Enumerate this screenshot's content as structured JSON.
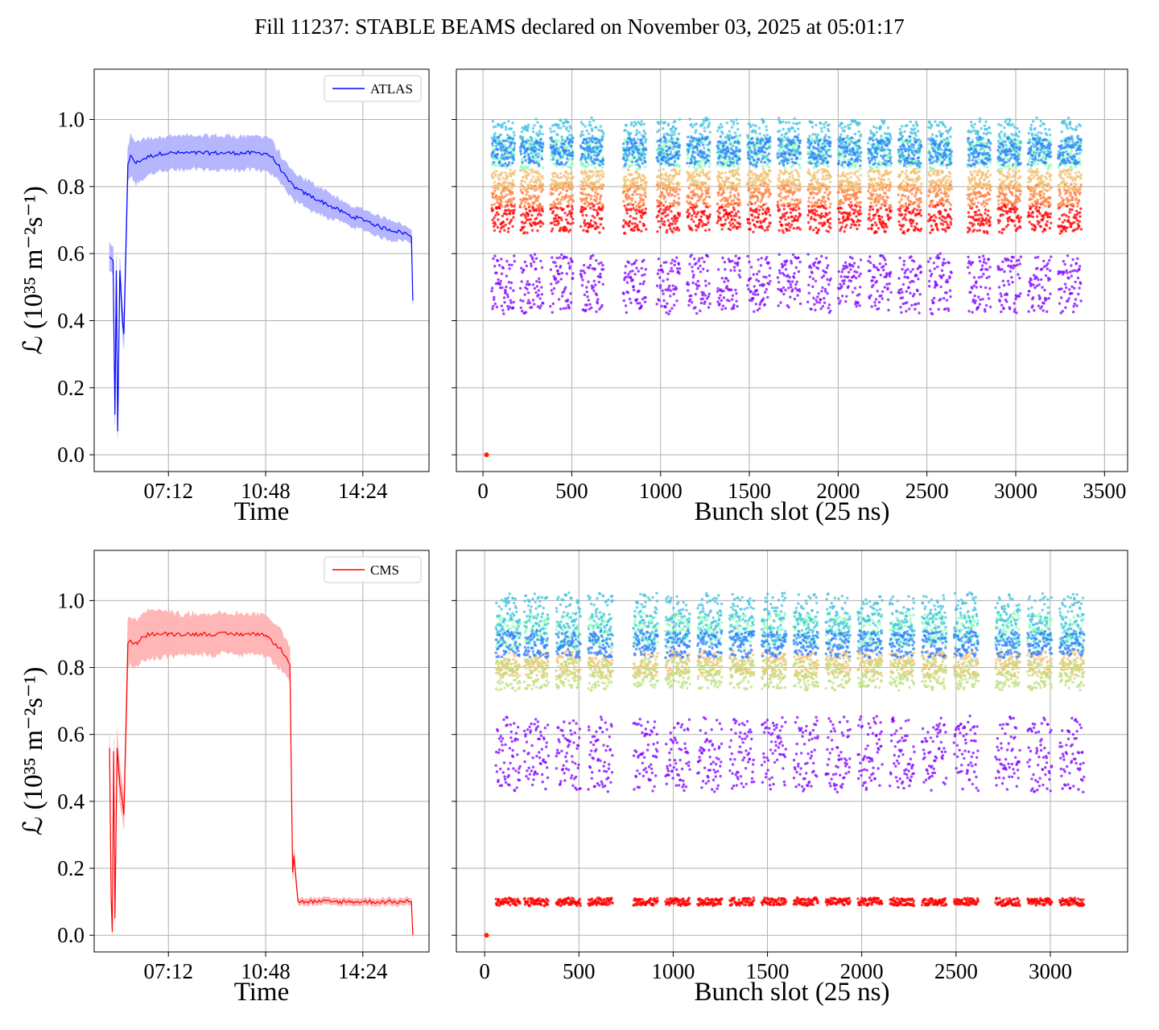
{
  "title": "Fill 11237: STABLE BEAMS declared on November 03, 2025 at 05:01:17",
  "chart_data": [
    {
      "panel": "top-left",
      "type": "line",
      "xlabel": "Time",
      "ylabel": "ℒ (10³⁵ m⁻²s⁻¹)",
      "x_ticks": [
        "07:12",
        "10:48",
        "14:24"
      ],
      "y_ticks": [
        "0.0",
        "0.2",
        "0.4",
        "0.6",
        "0.8",
        "1.0"
      ],
      "ylim": [
        -0.05,
        1.15
      ],
      "xlim_hours": [
        4.45,
        16.85
      ],
      "grid": true,
      "legend_position": "top-right",
      "color": "#0000ff",
      "band_color": "#b3b3ff",
      "series": [
        {
          "name": "ATLAS",
          "x_hours": [
            5.02,
            5.15,
            5.22,
            5.27,
            5.32,
            5.4,
            5.5,
            5.55,
            5.7,
            5.8,
            6.0,
            6.2,
            6.5,
            7.0,
            7.5,
            8.0,
            8.5,
            9.0,
            9.5,
            10.0,
            10.5,
            10.8,
            11.0,
            11.3,
            11.6,
            12.0,
            12.5,
            13.0,
            13.5,
            14.0,
            14.5,
            15.0,
            15.5,
            16.0,
            16.2,
            16.25
          ],
          "y": [
            0.59,
            0.58,
            0.12,
            0.55,
            0.07,
            0.55,
            0.4,
            0.36,
            0.87,
            0.89,
            0.87,
            0.88,
            0.89,
            0.9,
            0.9,
            0.9,
            0.9,
            0.9,
            0.9,
            0.9,
            0.9,
            0.9,
            0.89,
            0.86,
            0.82,
            0.79,
            0.77,
            0.75,
            0.73,
            0.71,
            0.7,
            0.68,
            0.67,
            0.66,
            0.65,
            0.46
          ],
          "band_half_width": [
            0.04,
            0.04,
            0.03,
            0.04,
            0.02,
            0.04,
            0.04,
            0.04,
            0.05,
            0.06,
            0.06,
            0.06,
            0.05,
            0.05,
            0.05,
            0.05,
            0.05,
            0.05,
            0.05,
            0.05,
            0.05,
            0.05,
            0.05,
            0.04,
            0.04,
            0.04,
            0.04,
            0.04,
            0.03,
            0.03,
            0.03,
            0.03,
            0.03,
            0.02,
            0.02,
            0.01
          ]
        }
      ]
    },
    {
      "panel": "top-right",
      "type": "scatter",
      "xlabel": "Bunch slot (25 ns)",
      "x_ticks": [
        0,
        500,
        1000,
        1500,
        2000,
        2500,
        3000,
        3500
      ],
      "xlim": [
        -150,
        3630
      ],
      "ylim": [
        -0.05,
        1.15
      ],
      "grid": true,
      "colormap": "rainbow",
      "trains_start": [
        50,
        210,
        380,
        550,
        790,
        980,
        1150,
        1320,
        1490,
        1660,
        1830,
        2000,
        2170,
        2340,
        2510,
        2730,
        2900,
        3070,
        3240
      ],
      "bunches_per_train": 60,
      "train_slot_span": 130,
      "levels": [
        {
          "color": "#8000ff",
          "y_min": 0.4,
          "y_max": 0.62
        },
        {
          "color": "#ff0000",
          "y_min": 0.65,
          "y_max": 0.76
        },
        {
          "color": "#ff8040",
          "y_min": 0.73,
          "y_max": 0.82
        },
        {
          "color": "#f0c070",
          "y_min": 0.78,
          "y_max": 0.86
        },
        {
          "color": "#80ffb4",
          "y_min": 0.84,
          "y_max": 0.96
        },
        {
          "color": "#40c0e0",
          "y_min": 0.86,
          "y_max": 1.02
        },
        {
          "color": "#3080ff",
          "y_min": 0.85,
          "y_max": 0.96
        }
      ],
      "lone_point": {
        "x": 20,
        "y": 0.0,
        "color": "#ff2000"
      }
    },
    {
      "panel": "bottom-left",
      "type": "line",
      "xlabel": "Time",
      "ylabel": "ℒ (10³⁵ m⁻²s⁻¹)",
      "x_ticks": [
        "07:12",
        "10:48",
        "14:24"
      ],
      "y_ticks": [
        "0.0",
        "0.2",
        "0.4",
        "0.6",
        "0.8",
        "1.0"
      ],
      "ylim": [
        -0.05,
        1.15
      ],
      "xlim_hours": [
        4.45,
        16.85
      ],
      "grid": true,
      "legend_position": "top-right",
      "color": "#ff0000",
      "band_color": "#ffb3b3",
      "series": [
        {
          "name": "CMS",
          "x_hours": [
            5.02,
            5.08,
            5.12,
            5.17,
            5.22,
            5.3,
            5.4,
            5.5,
            5.55,
            5.7,
            5.8,
            6.0,
            6.2,
            6.5,
            7.0,
            7.5,
            8.0,
            8.5,
            9.0,
            9.5,
            10.0,
            10.5,
            10.8,
            11.0,
            11.3,
            11.6,
            11.7,
            11.75,
            11.8,
            11.85,
            12.0,
            12.5,
            13.0,
            14.0,
            15.0,
            16.0,
            16.2,
            16.25
          ],
          "y": [
            0.56,
            0.11,
            0.01,
            0.55,
            0.05,
            0.56,
            0.45,
            0.4,
            0.36,
            0.87,
            0.88,
            0.87,
            0.89,
            0.9,
            0.9,
            0.9,
            0.9,
            0.9,
            0.9,
            0.9,
            0.9,
            0.9,
            0.9,
            0.88,
            0.86,
            0.83,
            0.81,
            0.5,
            0.19,
            0.24,
            0.1,
            0.1,
            0.1,
            0.1,
            0.1,
            0.1,
            0.1,
            0.0
          ],
          "band_half_width": [
            0.04,
            0.02,
            0.01,
            0.04,
            0.01,
            0.05,
            0.05,
            0.05,
            0.05,
            0.07,
            0.07,
            0.07,
            0.07,
            0.07,
            0.07,
            0.06,
            0.06,
            0.06,
            0.06,
            0.06,
            0.06,
            0.06,
            0.06,
            0.06,
            0.06,
            0.05,
            0.05,
            0.03,
            0.02,
            0.02,
            0.01,
            0.01,
            0.01,
            0.01,
            0.01,
            0.01,
            0.01,
            0.0
          ]
        }
      ]
    },
    {
      "panel": "bottom-right",
      "type": "scatter",
      "xlabel": "Bunch slot (25 ns)",
      "x_ticks": [
        0,
        500,
        1000,
        1500,
        2000,
        2500,
        3000
      ],
      "xlim": [
        -150,
        3410
      ],
      "ylim": [
        -0.05,
        1.15
      ],
      "grid": true,
      "colormap": "rainbow",
      "trains_start": [
        60,
        210,
        380,
        550,
        790,
        960,
        1130,
        1300,
        1470,
        1640,
        1810,
        1980,
        2150,
        2320,
        2490,
        2710,
        2880,
        3050
      ],
      "bunches_per_train": 60,
      "train_slot_span": 130,
      "levels": [
        {
          "color": "#ff0000",
          "y_min": 0.085,
          "y_max": 0.115
        },
        {
          "color": "#8000ff",
          "y_min": 0.4,
          "y_max": 0.68
        },
        {
          "color": "#f0c070",
          "y_min": 0.76,
          "y_max": 0.86
        },
        {
          "color": "#c0e080",
          "y_min": 0.72,
          "y_max": 0.84
        },
        {
          "color": "#80ffb4",
          "y_min": 0.84,
          "y_max": 0.98
        },
        {
          "color": "#40c0e0",
          "y_min": 0.86,
          "y_max": 1.04
        },
        {
          "color": "#3080ff",
          "y_min": 0.82,
          "y_max": 0.92
        }
      ],
      "lone_point": {
        "x": 10,
        "y": 0.0,
        "color": "#ff2000"
      }
    }
  ]
}
